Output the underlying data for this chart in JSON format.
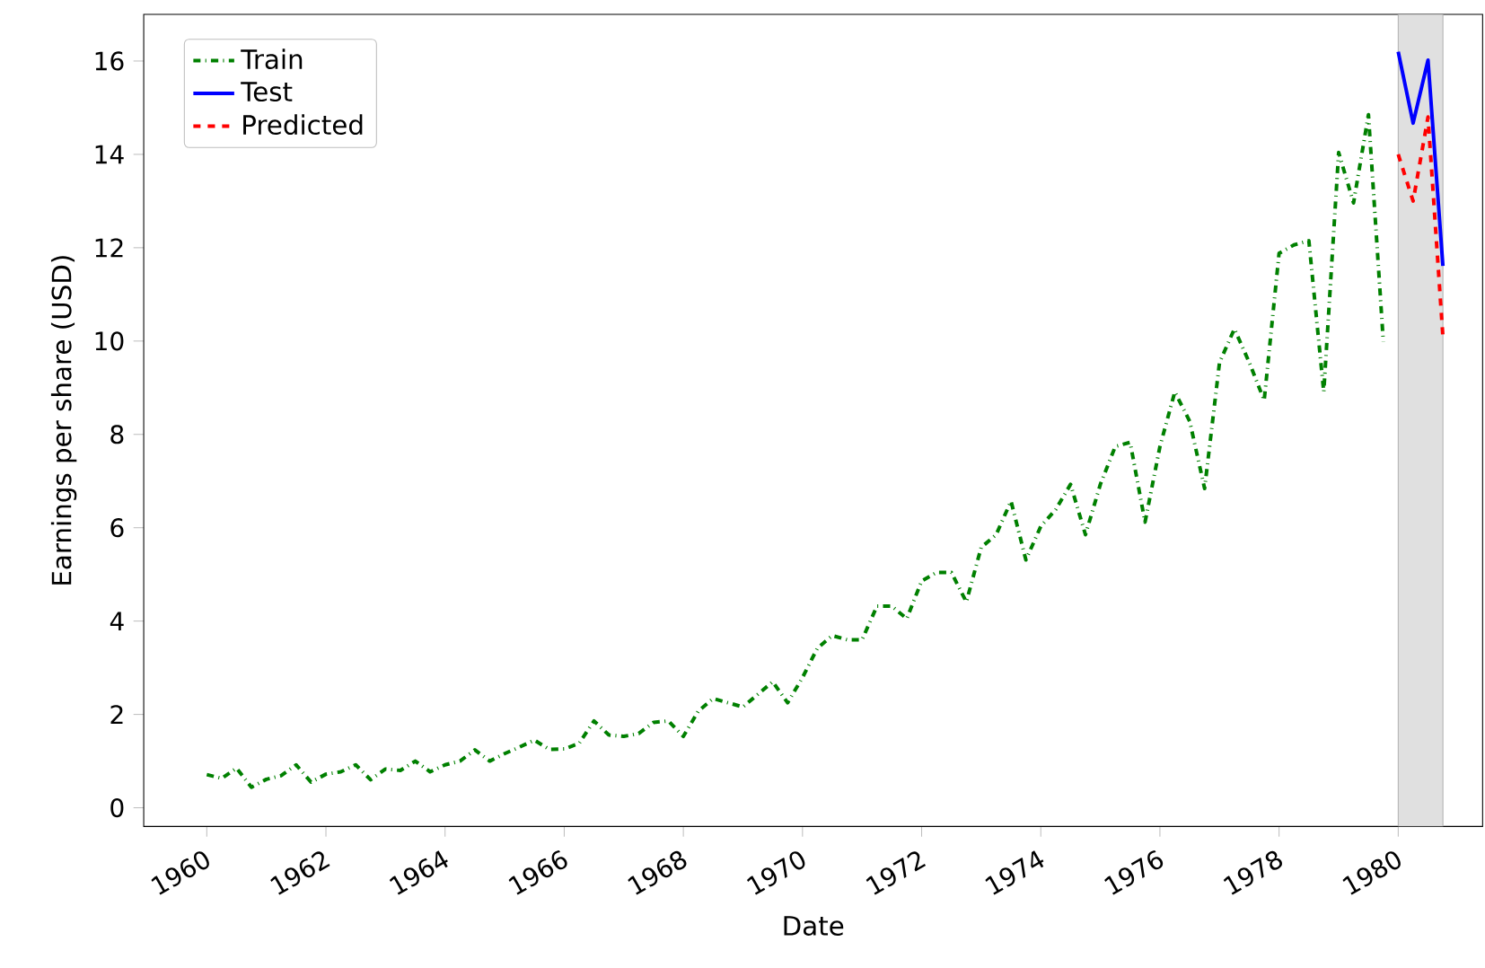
{
  "chart_data": {
    "type": "line",
    "xlabel": "Date",
    "ylabel": "Earnings per share (USD)",
    "xlim": [
      "1958-12-10",
      "1981-06-01"
    ],
    "ylim": [
      -0.4,
      17
    ],
    "xticks": [
      "1960",
      "1962",
      "1964",
      "1966",
      "1968",
      "1970",
      "1972",
      "1974",
      "1976",
      "1978",
      "1980"
    ],
    "yticks": [
      0,
      2,
      4,
      6,
      8,
      10,
      12,
      14,
      16
    ],
    "grid": false,
    "legend": "top left",
    "bands": [
      {
        "axis": "x",
        "from": "1980-01-01",
        "to": "1980-10-01",
        "color": "#e0e0e0"
      }
    ],
    "series": [
      {
        "name": "Train",
        "color": "#008000",
        "line_style": "dashdot",
        "x": [
          "1960-01",
          "1960-04",
          "1960-07",
          "1960-10",
          "1961-01",
          "1961-04",
          "1961-07",
          "1961-10",
          "1962-01",
          "1962-04",
          "1962-07",
          "1962-10",
          "1963-01",
          "1963-04",
          "1963-07",
          "1963-10",
          "1964-01",
          "1964-04",
          "1964-07",
          "1964-10",
          "1965-01",
          "1965-04",
          "1965-07",
          "1965-10",
          "1966-01",
          "1966-04",
          "1966-07",
          "1966-10",
          "1967-01",
          "1967-04",
          "1967-07",
          "1967-10",
          "1968-01",
          "1968-04",
          "1968-07",
          "1968-10",
          "1969-01",
          "1969-04",
          "1969-07",
          "1969-10",
          "1970-01",
          "1970-04",
          "1970-07",
          "1970-10",
          "1971-01",
          "1971-04",
          "1971-07",
          "1971-10",
          "1972-01",
          "1972-04",
          "1972-07",
          "1972-10",
          "1973-01",
          "1973-04",
          "1973-07",
          "1973-10",
          "1974-01",
          "1974-04",
          "1974-07",
          "1974-10",
          "1975-01",
          "1975-04",
          "1975-07",
          "1975-10",
          "1976-01",
          "1976-04",
          "1976-07",
          "1976-10",
          "1977-01",
          "1977-04",
          "1977-07",
          "1977-10",
          "1978-01",
          "1978-04",
          "1978-07",
          "1978-10",
          "1979-01",
          "1979-04",
          "1979-07",
          "1979-10"
        ],
        "values": [
          0.71,
          0.63,
          0.85,
          0.44,
          0.61,
          0.69,
          0.92,
          0.55,
          0.72,
          0.77,
          0.92,
          0.6,
          0.83,
          0.8,
          1.0,
          0.77,
          0.92,
          1.0,
          1.24,
          1.0,
          1.16,
          1.3,
          1.45,
          1.25,
          1.26,
          1.38,
          1.86,
          1.56,
          1.53,
          1.59,
          1.83,
          1.86,
          1.53,
          2.07,
          2.34,
          2.25,
          2.16,
          2.43,
          2.7,
          2.25,
          2.79,
          3.42,
          3.69,
          3.6,
          3.6,
          4.32,
          4.32,
          4.05,
          4.86,
          5.04,
          5.04,
          4.41,
          5.58,
          5.85,
          6.57,
          5.31,
          6.03,
          6.39,
          6.93,
          5.85,
          6.93,
          7.74,
          7.83,
          6.12,
          7.74,
          8.91,
          8.28,
          6.84,
          9.54,
          10.26,
          9.54,
          8.73,
          11.88,
          12.06,
          12.15,
          8.91,
          14.04,
          12.96,
          14.85,
          9.99
        ]
      },
      {
        "name": "Test",
        "color": "#0000ff",
        "line_style": "solid",
        "x": [
          "1980-01",
          "1980-04",
          "1980-07",
          "1980-10"
        ],
        "values": [
          16.2,
          14.67,
          16.02,
          11.61
        ]
      },
      {
        "name": "Predicted",
        "color": "#ff0000",
        "line_style": "dashed",
        "x": [
          "1980-01",
          "1980-04",
          "1980-07",
          "1980-10"
        ],
        "values": [
          14.0,
          13.0,
          14.8,
          10.1
        ]
      }
    ]
  }
}
